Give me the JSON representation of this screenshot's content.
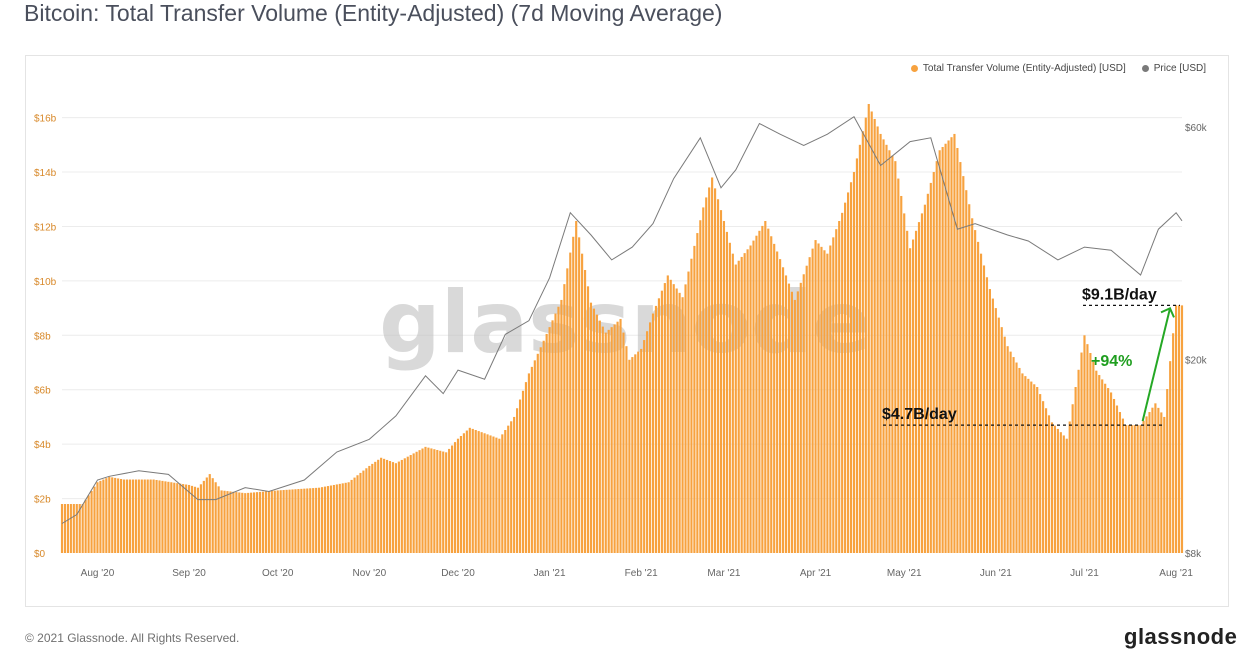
{
  "title": "Bitcoin: Total Transfer Volume (Entity-Adjusted) (7d Moving Average)",
  "copyright": "© 2021 Glassnode. All Rights Reserved.",
  "brand": "glassnode",
  "watermark": "glassnode",
  "colors": {
    "volume": "#f7a23f",
    "price": "#7a7a7a",
    "annotation_arrow": "#25a825",
    "annotation_pct": "#1f9e1f"
  },
  "legend": {
    "volume": "Total Transfer Volume (Entity-Adjusted) [USD]",
    "price": "Price [USD]",
    "placement": "top-right"
  },
  "annotations": {
    "high_label": "$9.1B/day",
    "low_label": "$4.7B/day",
    "pct_label": "+94%"
  },
  "chart_data": {
    "type": "bar",
    "x_range": [
      "2020-07-20",
      "2021-08-03"
    ],
    "x_ticks": [
      {
        "date": "2020-08-01",
        "label": "Aug '20"
      },
      {
        "date": "2020-09-01",
        "label": "Sep '20"
      },
      {
        "date": "2020-10-01",
        "label": "Oct '20"
      },
      {
        "date": "2020-11-01",
        "label": "Nov '20"
      },
      {
        "date": "2020-12-01",
        "label": "Dec '20"
      },
      {
        "date": "2021-01-01",
        "label": "Jan '21"
      },
      {
        "date": "2021-02-01",
        "label": "Feb '21"
      },
      {
        "date": "2021-03-01",
        "label": "Mar '21"
      },
      {
        "date": "2021-04-01",
        "label": "Apr '21"
      },
      {
        "date": "2021-05-01",
        "label": "May '21"
      },
      {
        "date": "2021-06-01",
        "label": "Jun '21"
      },
      {
        "date": "2021-07-01",
        "label": "Jul '21"
      },
      {
        "date": "2021-08-01",
        "label": "Aug '21"
      }
    ],
    "y_left": {
      "ylim": [
        0,
        16.5
      ],
      "unit": "billion USD",
      "ticks": [
        {
          "value": 0,
          "label": "$0"
        },
        {
          "value": 2,
          "label": "$2b"
        },
        {
          "value": 4,
          "label": "$4b"
        },
        {
          "value": 6,
          "label": "$6b"
        },
        {
          "value": 8,
          "label": "$8b"
        },
        {
          "value": 10,
          "label": "$10b"
        },
        {
          "value": 12,
          "label": "$12b"
        },
        {
          "value": 14,
          "label": "$14b"
        },
        {
          "value": 16,
          "label": "$16b"
        }
      ]
    },
    "y_right": {
      "scale": "log",
      "ticks": [
        {
          "value": 8000,
          "label": "$8k"
        },
        {
          "value": 20000,
          "label": "$20k"
        },
        {
          "value": 60000,
          "label": "$60k"
        }
      ]
    },
    "grid": true,
    "series": [
      {
        "name": "Total Transfer Volume (Entity-Adjusted) [USD]",
        "kind": "bar",
        "axis": "left",
        "points": [
          [
            "2020-07-20",
            1.8
          ],
          [
            "2020-07-27",
            1.8
          ],
          [
            "2020-08-01",
            2.6
          ],
          [
            "2020-08-05",
            2.8
          ],
          [
            "2020-08-10",
            2.7
          ],
          [
            "2020-08-20",
            2.7
          ],
          [
            "2020-09-01",
            2.5
          ],
          [
            "2020-09-04",
            2.4
          ],
          [
            "2020-09-08",
            2.9
          ],
          [
            "2020-09-12",
            2.3
          ],
          [
            "2020-09-20",
            2.2
          ],
          [
            "2020-10-01",
            2.3
          ],
          [
            "2020-10-15",
            2.4
          ],
          [
            "2020-10-25",
            2.6
          ],
          [
            "2020-11-01",
            3.2
          ],
          [
            "2020-11-05",
            3.5
          ],
          [
            "2020-11-10",
            3.3
          ],
          [
            "2020-11-20",
            3.9
          ],
          [
            "2020-11-27",
            3.7
          ],
          [
            "2020-12-01",
            4.2
          ],
          [
            "2020-12-05",
            4.6
          ],
          [
            "2020-12-15",
            4.2
          ],
          [
            "2020-12-20",
            5.0
          ],
          [
            "2020-12-25",
            6.6
          ],
          [
            "2020-12-30",
            7.8
          ],
          [
            "2021-01-05",
            9.3
          ],
          [
            "2021-01-10",
            12.2
          ],
          [
            "2021-01-15",
            9.2
          ],
          [
            "2021-01-20",
            8.1
          ],
          [
            "2021-01-25",
            8.6
          ],
          [
            "2021-01-28",
            7.1
          ],
          [
            "2021-02-01",
            7.5
          ],
          [
            "2021-02-05",
            8.8
          ],
          [
            "2021-02-10",
            10.2
          ],
          [
            "2021-02-15",
            9.4
          ],
          [
            "2021-02-22",
            12.7
          ],
          [
            "2021-02-25",
            13.8
          ],
          [
            "2021-03-05",
            10.6
          ],
          [
            "2021-03-10",
            11.3
          ],
          [
            "2021-03-15",
            12.2
          ],
          [
            "2021-03-20",
            10.8
          ],
          [
            "2021-03-25",
            9.3
          ],
          [
            "2021-04-01",
            11.5
          ],
          [
            "2021-04-05",
            11.0
          ],
          [
            "2021-04-10",
            12.5
          ],
          [
            "2021-04-14",
            14.0
          ],
          [
            "2021-04-19",
            16.5
          ],
          [
            "2021-04-23",
            15.4
          ],
          [
            "2021-04-28",
            14.4
          ],
          [
            "2021-05-03",
            11.2
          ],
          [
            "2021-05-08",
            12.8
          ],
          [
            "2021-05-13",
            14.8
          ],
          [
            "2021-05-18",
            15.4
          ],
          [
            "2021-05-24",
            12.3
          ],
          [
            "2021-05-30",
            9.7
          ],
          [
            "2021-06-05",
            7.6
          ],
          [
            "2021-06-10",
            6.6
          ],
          [
            "2021-06-15",
            6.1
          ],
          [
            "2021-06-20",
            4.8
          ],
          [
            "2021-06-25",
            4.2
          ],
          [
            "2021-07-01",
            8.0
          ],
          [
            "2021-07-05",
            6.7
          ],
          [
            "2021-07-10",
            5.9
          ],
          [
            "2021-07-15",
            4.7
          ],
          [
            "2021-07-20",
            4.7
          ],
          [
            "2021-07-25",
            5.5
          ],
          [
            "2021-07-28",
            5.0
          ],
          [
            "2021-08-01",
            9.1
          ],
          [
            "2021-08-03",
            9.1
          ]
        ]
      },
      {
        "name": "Price [USD]",
        "kind": "line",
        "axis": "right",
        "points": [
          [
            "2020-07-20",
            9200
          ],
          [
            "2020-07-25",
            9600
          ],
          [
            "2020-08-01",
            11300
          ],
          [
            "2020-08-05",
            11500
          ],
          [
            "2020-08-15",
            11800
          ],
          [
            "2020-08-25",
            11600
          ],
          [
            "2020-09-04",
            10300
          ],
          [
            "2020-09-10",
            10300
          ],
          [
            "2020-09-20",
            10900
          ],
          [
            "2020-09-28",
            10700
          ],
          [
            "2020-10-10",
            11300
          ],
          [
            "2020-10-21",
            12900
          ],
          [
            "2020-11-01",
            13700
          ],
          [
            "2020-11-10",
            15300
          ],
          [
            "2020-11-20",
            18500
          ],
          [
            "2020-11-26",
            17000
          ],
          [
            "2020-12-01",
            19000
          ],
          [
            "2020-12-10",
            18200
          ],
          [
            "2020-12-17",
            22500
          ],
          [
            "2020-12-25",
            24000
          ],
          [
            "2021-01-01",
            29400
          ],
          [
            "2021-01-08",
            40000
          ],
          [
            "2021-01-15",
            36000
          ],
          [
            "2021-01-22",
            32000
          ],
          [
            "2021-01-29",
            34000
          ],
          [
            "2021-02-05",
            38000
          ],
          [
            "2021-02-12",
            47000
          ],
          [
            "2021-02-21",
            57000
          ],
          [
            "2021-02-28",
            45000
          ],
          [
            "2021-03-05",
            49000
          ],
          [
            "2021-03-13",
            61000
          ],
          [
            "2021-03-20",
            58000
          ],
          [
            "2021-03-28",
            55000
          ],
          [
            "2021-04-05",
            58000
          ],
          [
            "2021-04-14",
            63000
          ],
          [
            "2021-04-23",
            50000
          ],
          [
            "2021-05-03",
            56000
          ],
          [
            "2021-05-10",
            57000
          ],
          [
            "2021-05-19",
            37000
          ],
          [
            "2021-05-25",
            38000
          ],
          [
            "2021-06-05",
            36000
          ],
          [
            "2021-06-12",
            35000
          ],
          [
            "2021-06-22",
            32000
          ],
          [
            "2021-07-01",
            34000
          ],
          [
            "2021-07-10",
            33500
          ],
          [
            "2021-07-20",
            29800
          ],
          [
            "2021-07-26",
            37000
          ],
          [
            "2021-08-01",
            40000
          ],
          [
            "2021-08-03",
            38500
          ]
        ]
      }
    ],
    "annotated_points": [
      {
        "label": "$4.7B/day",
        "date": "2021-07-20",
        "value": 4.7
      },
      {
        "label": "$9.1B/day",
        "date": "2021-08-03",
        "value": 9.1
      },
      {
        "label": "+94%"
      }
    ]
  }
}
